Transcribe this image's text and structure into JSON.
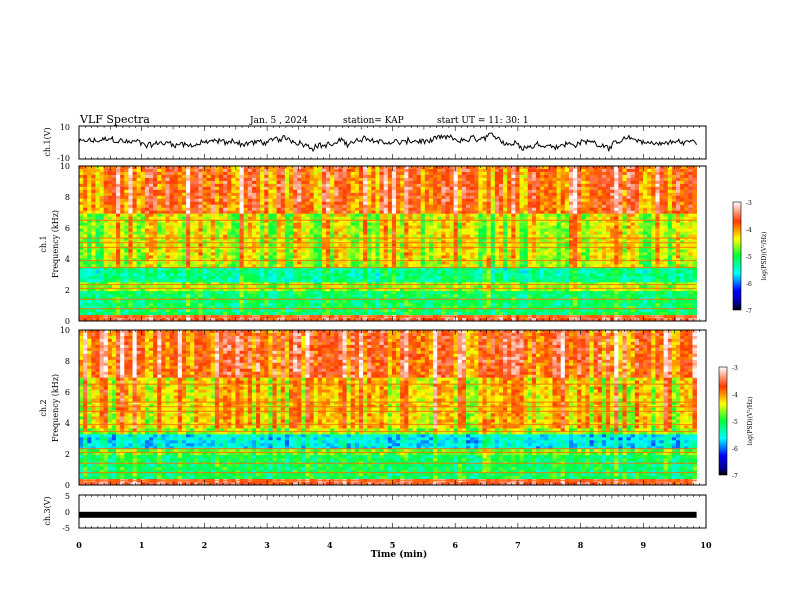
{
  "header": {
    "title": "VLF Spectra",
    "date": "Jan. 5 , 2024",
    "station": "station= KAP",
    "start_ut": "start UT =  11: 30: 1"
  },
  "chart_data": [
    {
      "type": "line",
      "name": "ch1-waveform",
      "ylabel": "ch.1(V)",
      "ylim": [
        -10,
        10
      ],
      "yticks": [
        "10",
        "-10"
      ],
      "xlim": [
        0,
        10
      ],
      "x_end": 9.85,
      "color": "#000000"
    },
    {
      "type": "heatmap",
      "name": "ch1-spectrogram",
      "ylabel_line1": "ch.1",
      "ylabel_line2": "Frequency (kHz)",
      "ylim": [
        0,
        10
      ],
      "yticks": [
        "0",
        "2",
        "4",
        "6",
        "8",
        "10"
      ],
      "xlim": [
        0,
        10
      ],
      "data_x_end": 9.85,
      "colorbar": {
        "label": "log(PSD)(V²/Hz)",
        "min": -7,
        "max": -3,
        "ticks": [
          "-3",
          "-4",
          "-5",
          "-6",
          "-7"
        ]
      },
      "bands_khz": [
        {
          "from": 0.0,
          "to": 0.3,
          "level": 0.85
        },
        {
          "from": 0.3,
          "to": 2.0,
          "level": 0.46
        },
        {
          "from": 2.0,
          "to": 2.5,
          "level": 0.58
        },
        {
          "from": 2.5,
          "to": 3.5,
          "level": 0.42
        },
        {
          "from": 3.5,
          "to": 4.0,
          "level": 0.6
        },
        {
          "from": 4.0,
          "to": 7.0,
          "level": 0.62
        },
        {
          "from": 7.0,
          "to": 10.0,
          "level": 0.78
        }
      ],
      "event_time_min": 6.5
    },
    {
      "type": "heatmap",
      "name": "ch2-spectrogram",
      "ylabel_line1": "ch.2",
      "ylabel_line2": "Frequency (kHz)",
      "ylim": [
        0,
        10
      ],
      "yticks": [
        "0",
        "2",
        "4",
        "6",
        "8",
        "10"
      ],
      "xlim": [
        0,
        10
      ],
      "data_x_end": 9.85,
      "colorbar": {
        "label": "log(PSD)(V²/Hz)",
        "min": -7,
        "max": -3,
        "ticks": [
          "-3",
          "-4",
          "-5",
          "-6",
          "-7"
        ]
      },
      "bands_khz": [
        {
          "from": 0.0,
          "to": 0.3,
          "level": 0.85
        },
        {
          "from": 0.3,
          "to": 2.0,
          "level": 0.47
        },
        {
          "from": 2.0,
          "to": 2.3,
          "level": 0.55
        },
        {
          "from": 2.3,
          "to": 3.3,
          "level": 0.34
        },
        {
          "from": 3.3,
          "to": 3.6,
          "level": 0.58
        },
        {
          "from": 3.6,
          "to": 7.0,
          "level": 0.68
        },
        {
          "from": 7.0,
          "to": 10.0,
          "level": 0.8
        }
      ],
      "event_time_min": 6.5
    },
    {
      "type": "line",
      "name": "ch3-waveform",
      "ylabel": "ch.3(V)",
      "ylim": [
        -5,
        5
      ],
      "yticks": [
        "5",
        "0",
        "-5"
      ],
      "xlim": [
        0,
        10
      ],
      "x_end": 9.85,
      "values_summary": "constant near -1 V",
      "level": -1,
      "color": "#000000"
    }
  ],
  "xaxis": {
    "label": "Time (min)",
    "ticks": [
      "0",
      "1",
      "2",
      "3",
      "4",
      "5",
      "6",
      "7",
      "8",
      "9",
      "10"
    ]
  }
}
